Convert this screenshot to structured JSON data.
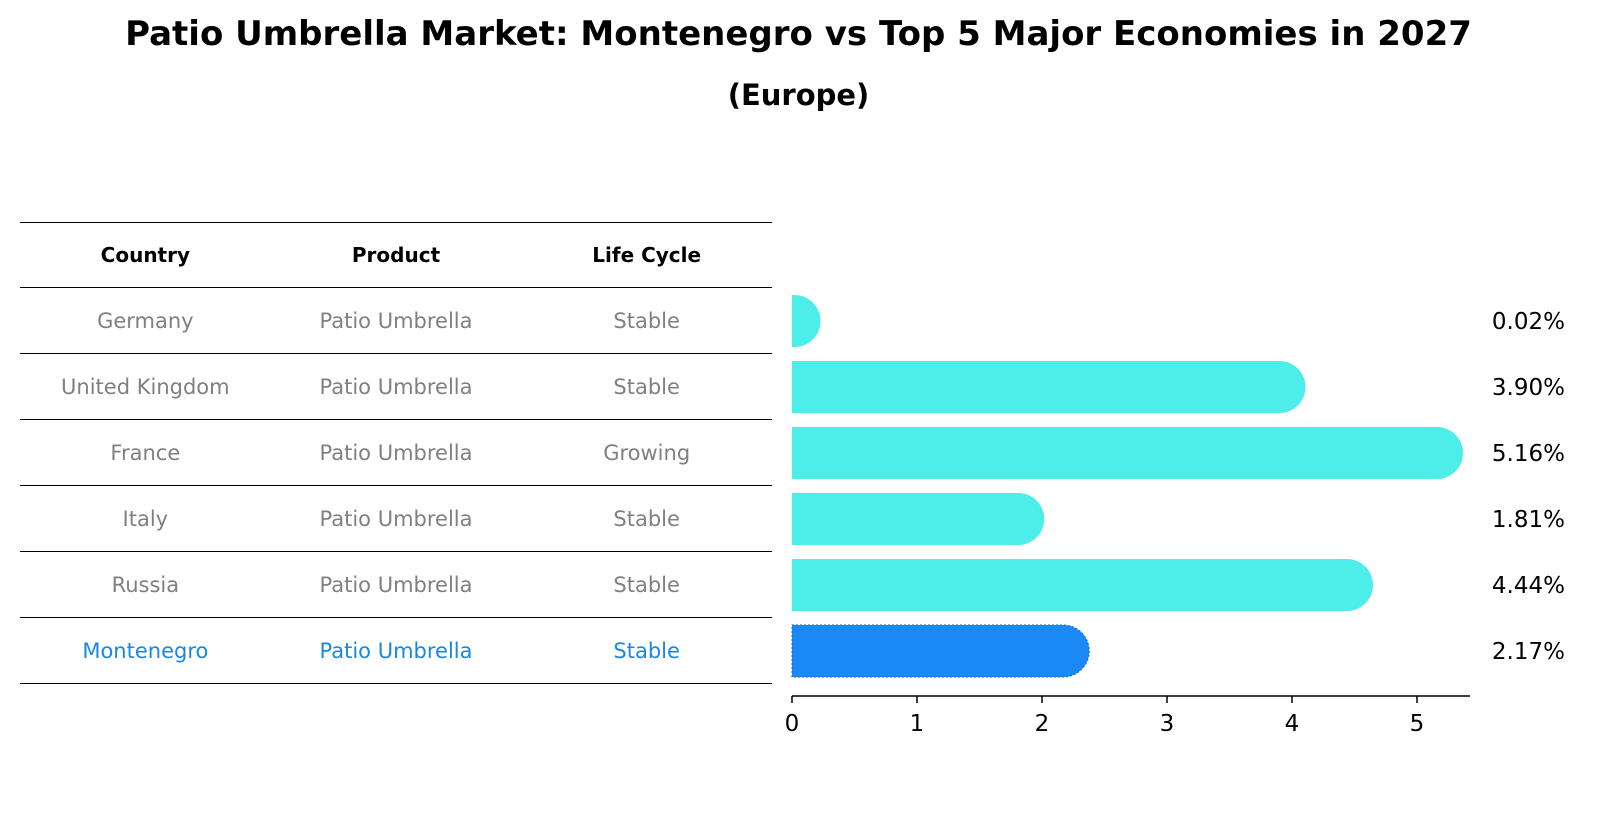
{
  "title": "Patio Umbrella Market: Montenegro vs Top 5 Major Economies in 2027",
  "subtitle": "(Europe)",
  "table": {
    "headers": [
      "Country",
      "Product",
      "Life Cycle"
    ],
    "rows": [
      [
        "Germany",
        "Patio Umbrella",
        "Stable"
      ],
      [
        "United Kingdom",
        "Patio Umbrella",
        "Stable"
      ],
      [
        "France",
        "Patio Umbrella",
        "Growing"
      ],
      [
        "Italy",
        "Patio Umbrella",
        "Stable"
      ],
      [
        "Russia",
        "Patio Umbrella",
        "Stable"
      ],
      [
        "Montenegro",
        "Patio Umbrella",
        "Stable"
      ]
    ]
  },
  "chart_data": {
    "type": "bar",
    "orientation": "horizontal",
    "categories": [
      "Germany",
      "United Kingdom",
      "France",
      "Italy",
      "Russia",
      "Montenegro"
    ],
    "values": [
      0.02,
      3.9,
      5.16,
      1.81,
      4.44,
      2.17
    ],
    "value_labels": [
      "0.02%",
      "3.90%",
      "5.16%",
      "1.81%",
      "4.44%",
      "2.17%"
    ],
    "xlim": [
      0,
      5.4
    ],
    "xticks": [
      "0",
      "1",
      "2",
      "3",
      "4",
      "5"
    ],
    "highlight_index": 5,
    "colors": {
      "bar": "#4deeea",
      "highlight": "#1a88f5",
      "table_text": "#808080",
      "highlight_text": "#1a88e2"
    }
  }
}
